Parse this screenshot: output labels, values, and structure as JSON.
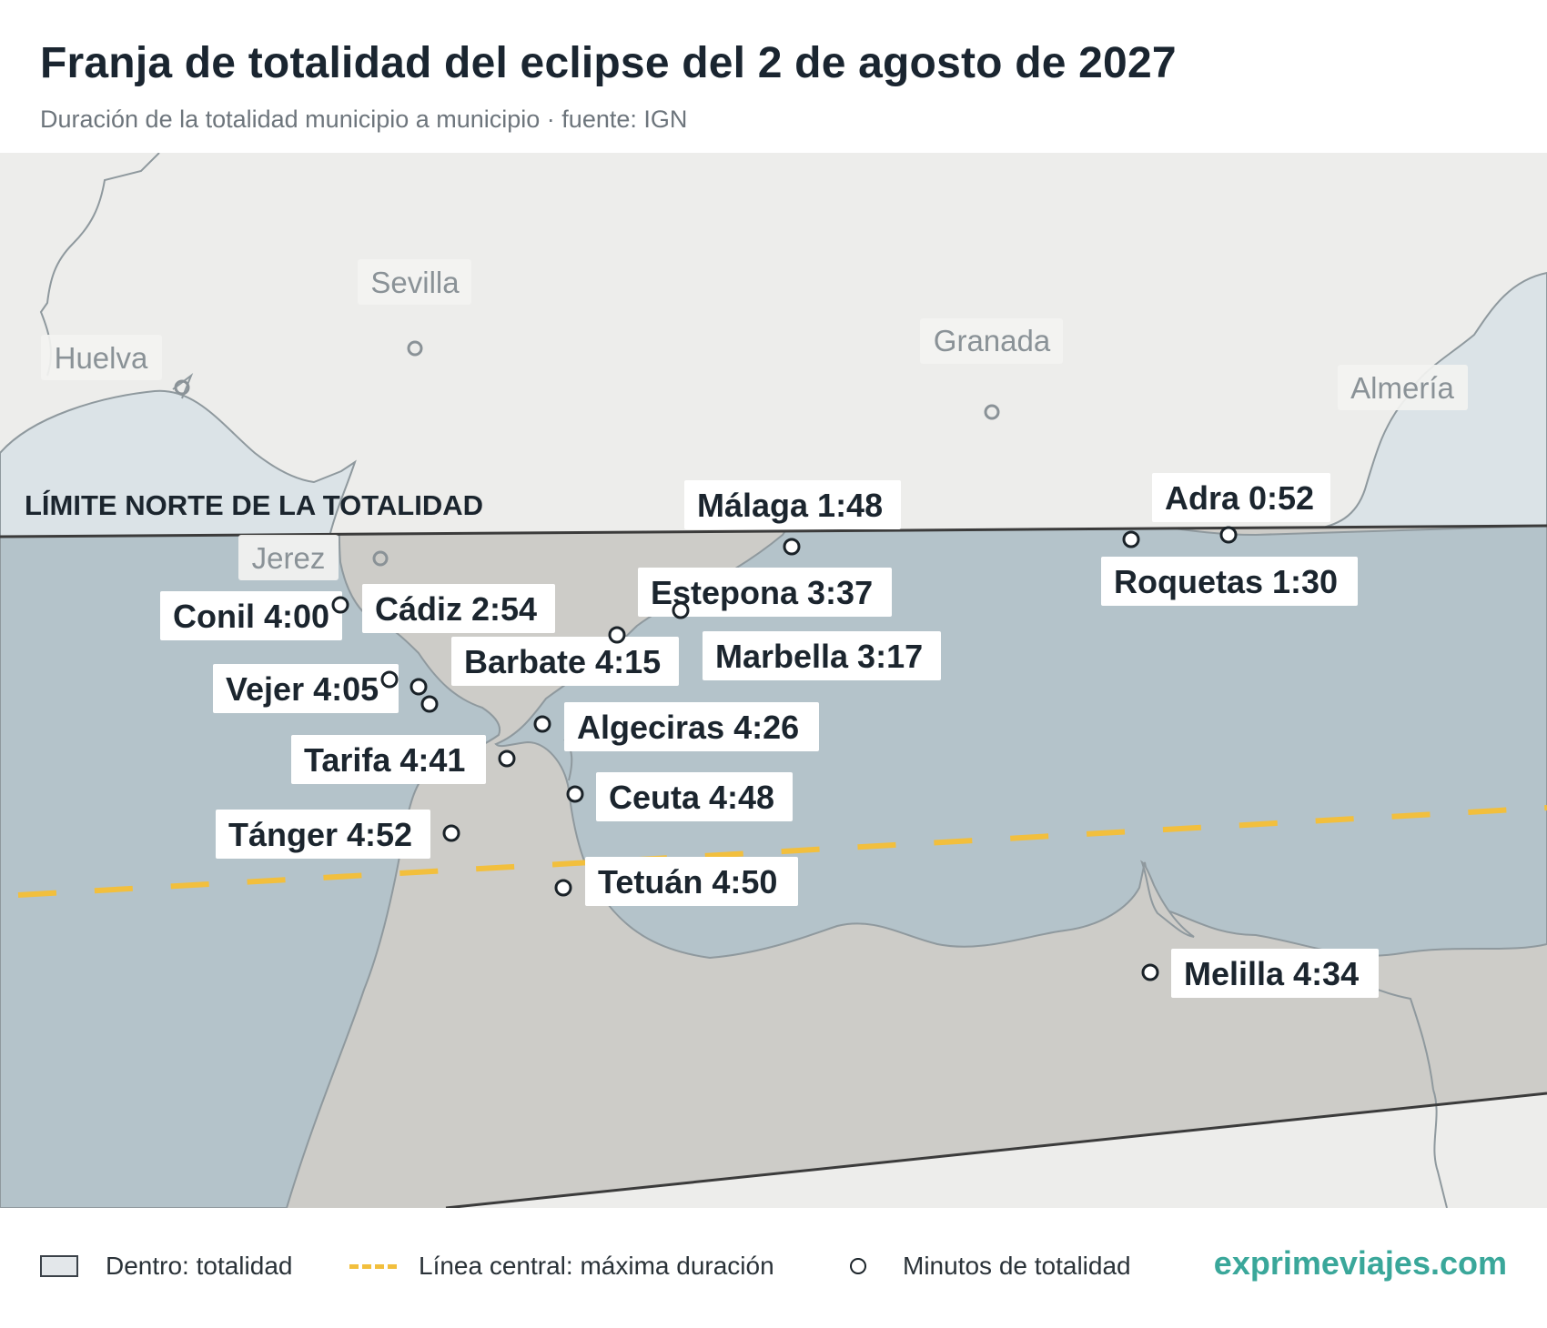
{
  "header": {
    "title": "Franja de totalidad del eclipse del 2 de agosto de 2027",
    "subtitle": "Duración de la totalidad municipio a municipio · fuente: IGN"
  },
  "map": {
    "north_limit_label": "LÍMITE NORTE DE LA TOTALIDAD",
    "reference_cities": [
      {
        "name": "Sevilla"
      },
      {
        "name": "Huelva"
      },
      {
        "name": "Granada"
      },
      {
        "name": "Almería"
      },
      {
        "name": "Jerez"
      }
    ],
    "places": [
      {
        "label": "Málaga 1:48",
        "name": "Málaga",
        "duration": "1:48"
      },
      {
        "label": "Adra 0:52",
        "name": "Adra",
        "duration": "0:52"
      },
      {
        "label": "Roquetas 1:30",
        "name": "Roquetas",
        "duration": "1:30"
      },
      {
        "label": "Conil 4:00",
        "name": "Conil",
        "duration": "4:00"
      },
      {
        "label": "Cádiz 2:54",
        "name": "Cádiz",
        "duration": "2:54"
      },
      {
        "label": "Estepona 3:37",
        "name": "Estepona",
        "duration": "3:37"
      },
      {
        "label": "Barbate 4:15",
        "name": "Barbate",
        "duration": "4:15"
      },
      {
        "label": "Marbella 3:17",
        "name": "Marbella",
        "duration": "3:17"
      },
      {
        "label": "Vejer 4:05",
        "name": "Vejer",
        "duration": "4:05"
      },
      {
        "label": "Algeciras 4:26",
        "name": "Algeciras",
        "duration": "4:26"
      },
      {
        "label": "Tarifa 4:41",
        "name": "Tarifa",
        "duration": "4:41"
      },
      {
        "label": "Ceuta 4:48",
        "name": "Ceuta",
        "duration": "4:48"
      },
      {
        "label": "Tánger 4:52",
        "name": "Tánger",
        "duration": "4:52"
      },
      {
        "label": "Tetuán 4:50",
        "name": "Tetuán",
        "duration": "4:50"
      },
      {
        "label": "Melilla 4:34",
        "name": "Melilla",
        "duration": "4:34"
      }
    ],
    "colors": {
      "land": "#ededeb",
      "sea": "#dbe3e7",
      "band_land": "#cdccc8",
      "band_sea": "#b4c3ca",
      "limit_line": "#3b3b3b",
      "central_line": "#f2bf3d",
      "coast": "#8f999e"
    }
  },
  "legend": {
    "inside": "Dentro: totalidad",
    "central": "Línea central: máxima duración",
    "minutes": "Minutos de totalidad",
    "brand": "exprimeviajes.com"
  }
}
